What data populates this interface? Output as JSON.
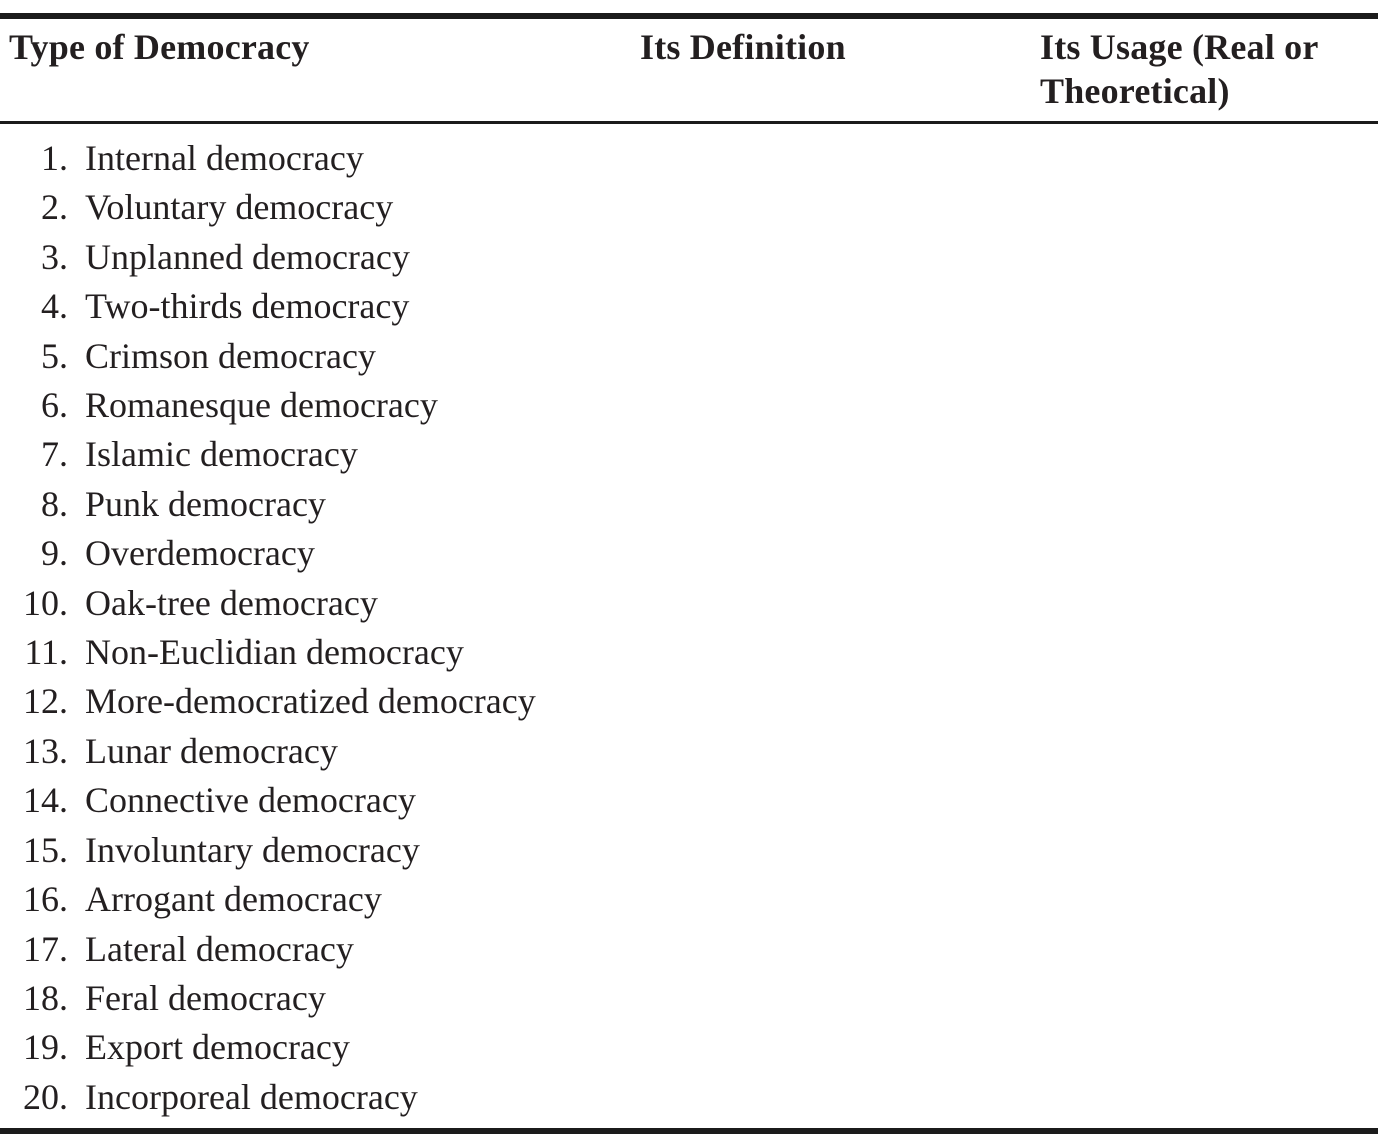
{
  "table": {
    "header": {
      "type_col": "Type of Democracy",
      "definition_col": "Its Definition",
      "usage_col": "Its Usage (Real or Theoretical)"
    },
    "rows": [
      {
        "num": "1.",
        "type": "Internal democracy"
      },
      {
        "num": "2.",
        "type": "Voluntary democracy"
      },
      {
        "num": "3.",
        "type": "Unplanned democracy"
      },
      {
        "num": "4.",
        "type": "Two-thirds democracy"
      },
      {
        "num": "5.",
        "type": "Crimson democracy"
      },
      {
        "num": "6.",
        "type": "Romanesque democracy"
      },
      {
        "num": "7.",
        "type": "Islamic democracy"
      },
      {
        "num": "8.",
        "type": "Punk democracy"
      },
      {
        "num": "9.",
        "type": "Overdemocracy"
      },
      {
        "num": "10.",
        "type": "Oak-tree democracy"
      },
      {
        "num": "11.",
        "type": "Non-Euclidian democracy"
      },
      {
        "num": "12.",
        "type": "More-democratized democracy"
      },
      {
        "num": "13.",
        "type": "Lunar democracy"
      },
      {
        "num": "14.",
        "type": "Connective democracy"
      },
      {
        "num": "15.",
        "type": "Involuntary democracy"
      },
      {
        "num": "16.",
        "type": "Arrogant democracy"
      },
      {
        "num": "17.",
        "type": "Lateral democracy"
      },
      {
        "num": "18.",
        "type": "Feral democracy"
      },
      {
        "num": "19.",
        "type": "Export democracy"
      },
      {
        "num": "20.",
        "type": "Incorporeal democracy"
      }
    ],
    "colors": {
      "text": "#231f20",
      "rule": "#1b1b1b",
      "background": "#ffffff"
    }
  }
}
